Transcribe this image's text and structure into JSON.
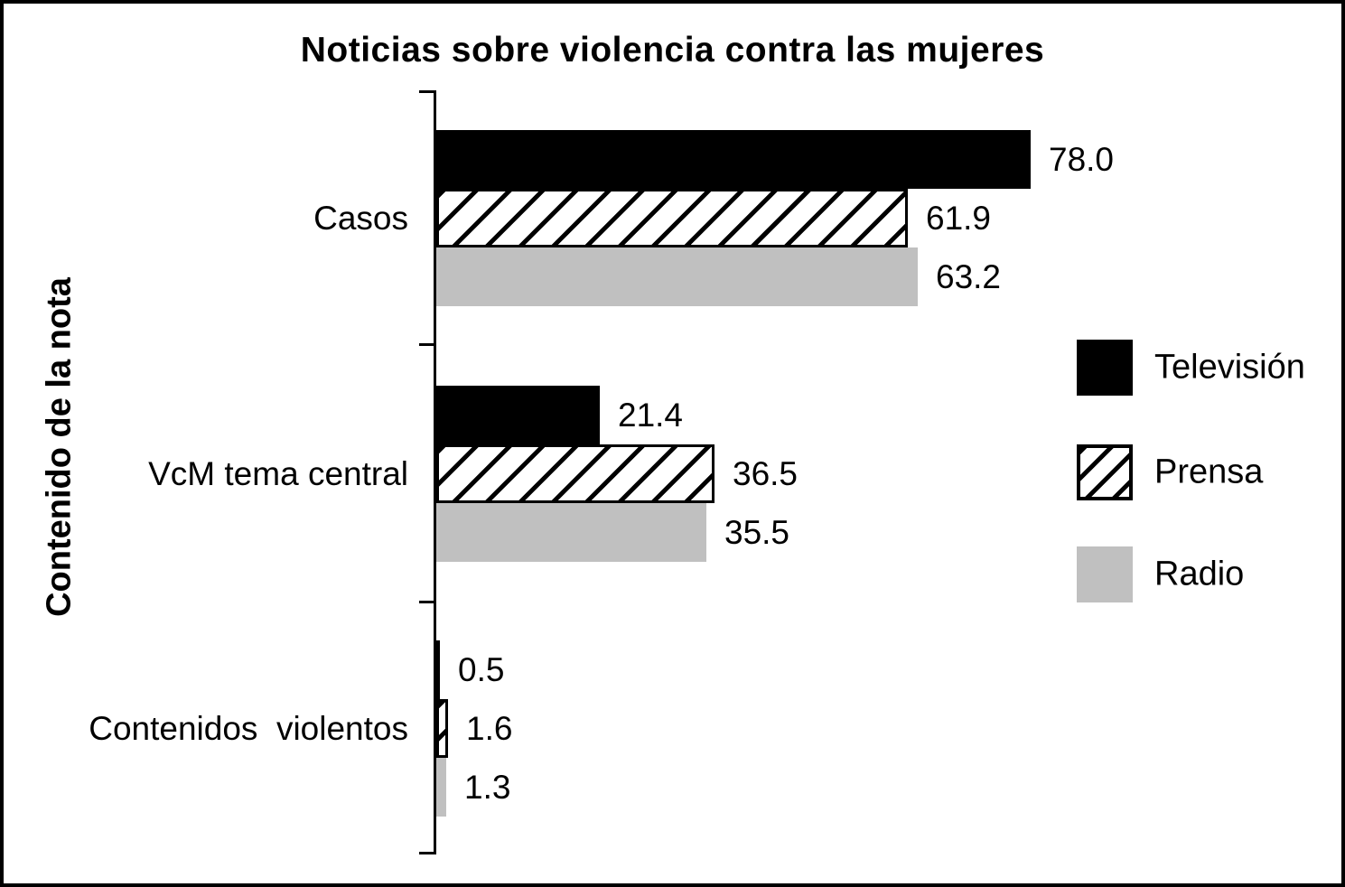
{
  "chart_data": {
    "type": "bar",
    "orientation": "horizontal",
    "title": "Noticias sobre violencia contra las mujeres",
    "ylabel": "Contenido de la nota",
    "xlabel": "",
    "categories": [
      "Casos",
      "VcM tema central",
      "Contenidos  violentos"
    ],
    "series": [
      {
        "name": "Televisión",
        "style": "solid-black",
        "color": "#000000",
        "values": [
          78.0,
          21.4,
          0.5
        ]
      },
      {
        "name": "Prensa",
        "style": "hatched",
        "color": "#ffffff",
        "hatch_color": "#000000",
        "values": [
          61.9,
          36.5,
          1.6
        ]
      },
      {
        "name": "Radio",
        "style": "solid-gray",
        "color": "#c0c0c0",
        "values": [
          63.2,
          35.5,
          1.3
        ]
      }
    ],
    "value_labels": true,
    "value_label_format": "one-decimal",
    "legend_position": "right",
    "grid": false,
    "x_axis_visible": false,
    "xlim": [
      0,
      90
    ],
    "axis_color": "#000000",
    "background_color": "#ffffff"
  }
}
